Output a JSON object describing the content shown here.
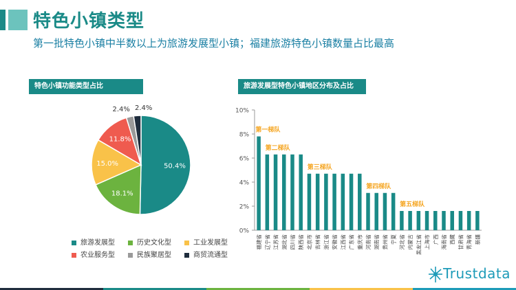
{
  "header": {
    "title": "特色小镇类型",
    "subtitle": "第一批特色小镇中半数以上为旅游发展型小镇；福建旅游特色小镇数量占比最高"
  },
  "pie_panel": {
    "title": "特色小镇功能类型占比"
  },
  "bar_panel": {
    "title": "旅游发展型特色小镇地区分布及占比"
  },
  "brand": {
    "name": "Trustdata"
  },
  "colors": {
    "teal": "#1a8a87",
    "green": "#6cb33f",
    "yellow": "#f9c249",
    "red": "#ef5b4f",
    "gray": "#9a9a9a",
    "navy": "#1f2d3d",
    "bar": "#1a8a87",
    "tier_label": "#f5a623"
  },
  "chart_data": [
    {
      "type": "pie",
      "title": "特色小镇功能类型占比",
      "legend": "bottom",
      "slices": [
        {
          "name": "旅游发展型",
          "value": 50.4,
          "label": "50.4%",
          "color": "#1a8a87"
        },
        {
          "name": "历史文化型",
          "value": 18.1,
          "label": "18.1%",
          "color": "#6cb33f"
        },
        {
          "name": "工业发展型",
          "value": 15.0,
          "label": "15.0%",
          "color": "#f9c249"
        },
        {
          "name": "农业服务型",
          "value": 11.8,
          "label": "11.8%",
          "color": "#ef5b4f"
        },
        {
          "name": "民族聚居型",
          "value": 2.4,
          "label": "2.4%",
          "color": "#9a9a9a"
        },
        {
          "name": "商贸流通型",
          "value": 2.4,
          "label": "2.4%",
          "color": "#1f2d3d"
        }
      ]
    },
    {
      "type": "bar",
      "title": "旅游发展型特色小镇地区分布及占比",
      "ylim": [
        0,
        10
      ],
      "yticks": [
        "0%",
        "2%",
        "4%",
        "6%",
        "8%",
        "10%"
      ],
      "categories": [
        "福建省",
        "辽宁省",
        "江苏省",
        "湖北省",
        "四川省",
        "陕西省",
        "北京市",
        "吉林省",
        "浙江省",
        "安徽省",
        "江西省",
        "广东省",
        "重庆市",
        "河南省",
        "湖南省",
        "贵州省",
        "宁夏",
        "河北省",
        "内蒙古",
        "黑龙江省",
        "上海市",
        "广西",
        "海南省",
        "西藏",
        "甘肃省",
        "青海省",
        "新疆"
      ],
      "values": [
        7.8,
        6.3,
        6.3,
        6.3,
        6.3,
        6.3,
        4.7,
        4.7,
        4.7,
        4.7,
        4.7,
        4.7,
        4.7,
        3.1,
        3.1,
        3.1,
        3.1,
        1.6,
        1.6,
        1.6,
        1.6,
        1.6,
        1.6,
        1.6,
        1.6,
        1.6,
        1.6
      ],
      "tiers": [
        {
          "label": "第一梯队",
          "start": 0,
          "end": 0
        },
        {
          "label": "第二梯队",
          "start": 1,
          "end": 5
        },
        {
          "label": "第三梯队",
          "start": 6,
          "end": 12
        },
        {
          "label": "第四梯队",
          "start": 13,
          "end": 16
        },
        {
          "label": "第五梯队",
          "start": 17,
          "end": 26
        }
      ]
    }
  ]
}
